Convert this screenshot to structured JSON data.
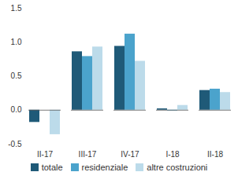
{
  "chart_data": {
    "type": "bar",
    "categories": [
      "II-17",
      "III-17",
      "IV-17",
      "I-18",
      "II-18"
    ],
    "series": [
      {
        "name": "totale",
        "color": "#1f5a78",
        "values": [
          -0.18,
          0.86,
          0.94,
          0.02,
          0.29
        ]
      },
      {
        "name": "residenziale",
        "color": "#4ba3cc",
        "values": [
          0.0,
          0.79,
          1.12,
          -0.01,
          0.31
        ]
      },
      {
        "name": "altre costruzioni",
        "color": "#bcdbea",
        "values": [
          -0.36,
          0.93,
          0.72,
          0.07,
          0.26
        ]
      }
    ],
    "ylim": [
      -0.5,
      1.5
    ],
    "yticks": [
      -0.5,
      {
        "value": 0,
        "label": "0.0"
      },
      0.5,
      {
        "value": 1,
        "label": "1.0"
      },
      1.5
    ],
    "grid": false,
    "legend": "bottom"
  }
}
